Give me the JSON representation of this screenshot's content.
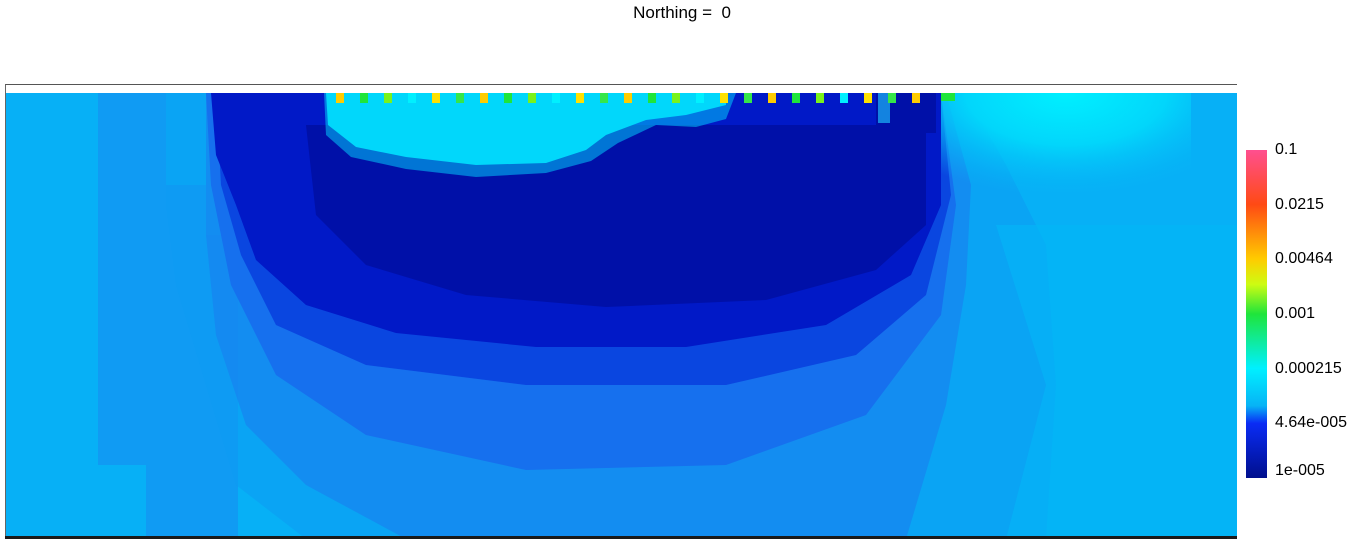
{
  "title": "Northing =  0",
  "chart_data": {
    "type": "heatmap",
    "title": "Northing =  0",
    "xlabel": "",
    "ylabel": "",
    "colorbar": {
      "scale": "log",
      "range": [
        1e-05,
        0.1
      ],
      "tick_labels": [
        "0.1",
        "0.0215",
        "0.00464",
        "0.001",
        "0.000215",
        "4.64e-005",
        "1e-005"
      ],
      "tick_values": [
        0.1,
        0.0215,
        0.00464,
        0.001,
        0.000215,
        4.64e-05,
        1e-05
      ],
      "colors": [
        "#ff4f8f",
        "#ff4a14",
        "#ffcc00",
        "#1fe53b",
        "#00f0ff",
        "#07b3f6",
        "#0a2cf5",
        "#000f8c"
      ]
    },
    "background_value": 8e-05
  },
  "colors": {
    "background_field": "#06b4f6",
    "mid_blue": "#1e86ef",
    "dark_blue": "#0017c4",
    "darkest_blue": "#000f8c",
    "cyan": "#00f0ff",
    "green": "#1fe53b"
  }
}
